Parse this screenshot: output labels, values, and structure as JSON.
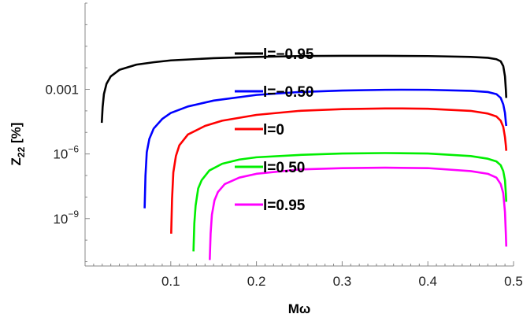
{
  "chart_data": {
    "type": "line",
    "xlabel": "Mω",
    "ylabel": "Z22 [%]",
    "ylabel_main": "Z",
    "ylabel_sub": "22",
    "ylabel_unit": " [%]",
    "yscale": "log",
    "xlim": [
      0.0,
      0.5
    ],
    "ylim_log10": [
      -11.2,
      1.0
    ],
    "x_ticks": [
      {
        "value": 0.1,
        "label": "0.1"
      },
      {
        "value": 0.2,
        "label": "0.2"
      },
      {
        "value": 0.3,
        "label": "0.3"
      },
      {
        "value": 0.4,
        "label": "0.4"
      },
      {
        "value": 0.5,
        "label": "0.5"
      }
    ],
    "y_ticks": [
      {
        "value": 0.001,
        "label": "0.001"
      },
      {
        "value": 1e-06,
        "label": "10",
        "exp": "−6"
      },
      {
        "value": 1e-09,
        "label": "10",
        "exp": "−9"
      }
    ],
    "grid": false,
    "legend_position": "center",
    "series": [
      {
        "name": "l=−0.95",
        "color": "#000000",
        "x": [
          0.0195,
          0.0205,
          0.022,
          0.025,
          0.03,
          0.04,
          0.06,
          0.08,
          0.1,
          0.15,
          0.2,
          0.25,
          0.3,
          0.35,
          0.4,
          0.45,
          0.47,
          0.48,
          0.485,
          0.488,
          0.49,
          0.491,
          0.4915
        ],
        "y": [
          2.8e-05,
          0.00015,
          0.0006,
          0.0018,
          0.004,
          0.008,
          0.014,
          0.018,
          0.022,
          0.028,
          0.032,
          0.035,
          0.036,
          0.036,
          0.035,
          0.032,
          0.029,
          0.025,
          0.02,
          0.012,
          0.004,
          0.001,
          0.0004
        ]
      },
      {
        "name": "l=−0.50",
        "color": "#0000ff",
        "x": [
          0.0695,
          0.0705,
          0.072,
          0.075,
          0.08,
          0.09,
          0.1,
          0.12,
          0.15,
          0.2,
          0.25,
          0.3,
          0.35,
          0.37,
          0.4,
          0.45,
          0.47,
          0.48,
          0.485,
          0.488,
          0.49,
          0.491,
          0.4915
        ],
        "y": [
          3e-09,
          1e-07,
          1.2e-06,
          5e-06,
          1.5e-05,
          4.2e-05,
          8e-05,
          0.00016,
          0.0003,
          0.00055,
          0.00075,
          0.00088,
          0.00095,
          0.00096,
          0.00095,
          0.00085,
          0.00075,
          0.0006,
          0.0004,
          0.0002,
          8e-05,
          3e-05,
          2e-05
        ]
      },
      {
        "name": "l=0",
        "color": "#ff0000",
        "x": [
          0.1005,
          0.1015,
          0.103,
          0.106,
          0.11,
          0.12,
          0.14,
          0.16,
          0.2,
          0.25,
          0.3,
          0.35,
          0.37,
          0.4,
          0.45,
          0.47,
          0.48,
          0.485,
          0.488,
          0.49,
          0.491,
          0.4915
        ],
        "y": [
          2e-10,
          8e-09,
          1.4e-07,
          8e-07,
          2.5e-06,
          8e-06,
          2e-05,
          3.5e-05,
          6.5e-05,
          0.0001,
          0.00012,
          0.00013,
          0.00013,
          0.000125,
          0.0001,
          7.5e-05,
          5.5e-05,
          3.5e-05,
          1.8e-05,
          6e-06,
          2.5e-06,
          1.4e-06
        ]
      },
      {
        "name": "l=0.50",
        "color": "#00ee00",
        "x": [
          0.1265,
          0.1275,
          0.129,
          0.132,
          0.136,
          0.145,
          0.16,
          0.18,
          0.2,
          0.25,
          0.3,
          0.35,
          0.4,
          0.45,
          0.47,
          0.48,
          0.485,
          0.488,
          0.49,
          0.491,
          0.4915
        ],
        "y": [
          3e-11,
          6e-10,
          4e-09,
          2.5e-08,
          6e-08,
          1.7e-07,
          3.5e-07,
          5.5e-07,
          7e-07,
          9e-07,
          1.05e-06,
          1.1e-06,
          1.05e-06,
          8e-07,
          6e-07,
          4.5e-07,
          3e-07,
          1.6e-07,
          6e-08,
          1.5e-08,
          6e-09
        ]
      },
      {
        "name": "l=0.95",
        "color": "#ff00ff",
        "x": [
          0.1455,
          0.1465,
          0.148,
          0.151,
          0.155,
          0.163,
          0.18,
          0.2,
          0.25,
          0.3,
          0.35,
          0.4,
          0.45,
          0.47,
          0.48,
          0.485,
          0.488,
          0.49,
          0.491,
          0.4915
        ],
        "y": [
          1.2e-11,
          2e-10,
          1.5e-09,
          7e-09,
          1.7e-08,
          4e-08,
          8e-08,
          1.2e-07,
          1.9e-07,
          2.2e-07,
          2.3e-07,
          2.2e-07,
          1.6e-07,
          1.2e-07,
          8e-08,
          4e-08,
          1.5e-08,
          2e-09,
          2e-10,
          5e-11
        ]
      }
    ]
  }
}
